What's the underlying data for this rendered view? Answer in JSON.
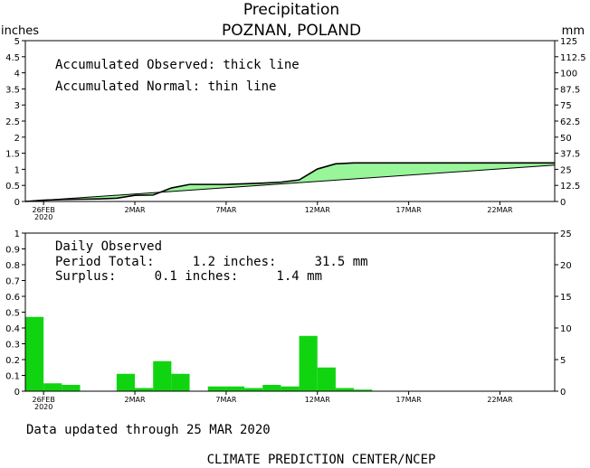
{
  "title": "Precipitation",
  "subtitle": "POZNAN, POLAND",
  "footer_updated": "Data updated through 25 MAR 2020",
  "footer_credit": "CLIMATE PREDICTION CENTER/NCEP",
  "colors": {
    "accumulated_fill": "#99f599",
    "daily_bar": "#11d411",
    "line": "#000000"
  },
  "chart_data": [
    {
      "type": "area",
      "left_unit": "inches",
      "right_unit": "mm",
      "annotations": [
        "Accumulated Observed: thick line",
        "Accumulated Normal: thin line"
      ],
      "ylim": [
        0,
        5
      ],
      "y_ticks": [
        "0",
        "0.5",
        "1",
        "1.5",
        "2",
        "2.5",
        "3",
        "3.5",
        "4",
        "4.5",
        "5"
      ],
      "y2lim": [
        0,
        125
      ],
      "y2_ticks": [
        "0",
        "12.5",
        "25",
        "37.5",
        "50",
        "62.5",
        "75",
        "87.5",
        "100",
        "112.5",
        "125"
      ],
      "x_ticks": [
        {
          "day": 0,
          "label": "26FEB",
          "sublabel": "2020"
        },
        {
          "day": 5,
          "label": "2MAR"
        },
        {
          "day": 10,
          "label": "7MAR"
        },
        {
          "day": 15,
          "label": "12MAR"
        },
        {
          "day": 20,
          "label": "17MAR"
        },
        {
          "day": 25,
          "label": "22MAR"
        }
      ],
      "x_range": [
        "25FEB",
        "24MAR"
      ],
      "series": [
        {
          "name": "Accumulated Observed",
          "x": [
            -1,
            0,
            1,
            2,
            3,
            4,
            5,
            6,
            7,
            8,
            9,
            10,
            11,
            12,
            13,
            14,
            15,
            16,
            17,
            18,
            19,
            20,
            21,
            22,
            23,
            24,
            25,
            26,
            27,
            28
          ],
          "y": [
            0,
            0.04,
            0.06,
            0.07,
            0.08,
            0.1,
            0.19,
            0.2,
            0.42,
            0.53,
            0.53,
            0.53,
            0.55,
            0.57,
            0.6,
            0.67,
            1.01,
            1.17,
            1.2,
            1.2,
            1.2,
            1.2,
            1.2,
            1.2,
            1.2,
            1.2,
            1.2,
            1.2,
            1.2,
            1.2
          ]
        },
        {
          "name": "Accumulated Normal",
          "x": [
            -1,
            28
          ],
          "y": [
            0,
            1.13
          ]
        }
      ]
    },
    {
      "type": "bar",
      "annotations": [
        "Daily Observed",
        "Period Total:     1.2 inches:     31.5 mm",
        "Surplus:     0.1 inches:     1.4 mm"
      ],
      "ylim": [
        0,
        1
      ],
      "y_ticks": [
        "0",
        "0.1",
        "0.2",
        "0.3",
        "0.4",
        "0.5",
        "0.6",
        "0.7",
        "0.8",
        "0.9",
        "1"
      ],
      "y2lim": [
        0,
        25
      ],
      "y2_ticks": [
        "0",
        "5",
        "10",
        "15",
        "20",
        "25"
      ],
      "x_ticks": [
        {
          "day": 0,
          "label": "26FEB",
          "sublabel": "2020"
        },
        {
          "day": 5,
          "label": "2MAR"
        },
        {
          "day": 10,
          "label": "7MAR"
        },
        {
          "day": 15,
          "label": "12MAR"
        },
        {
          "day": 20,
          "label": "17MAR"
        },
        {
          "day": 25,
          "label": "22MAR"
        }
      ],
      "x_range": [
        "25FEB",
        "24MAR"
      ],
      "bars": {
        "x": [
          -1,
          0,
          1,
          4,
          5,
          6,
          7,
          9,
          10,
          11,
          12,
          13,
          14,
          15,
          16,
          17
        ],
        "y": [
          0.47,
          0.05,
          0.04,
          0.11,
          0.02,
          0.19,
          0.11,
          0.03,
          0.03,
          0.02,
          0.04,
          0.03,
          0.35,
          0.15,
          0.02,
          0.01
        ]
      }
    }
  ]
}
